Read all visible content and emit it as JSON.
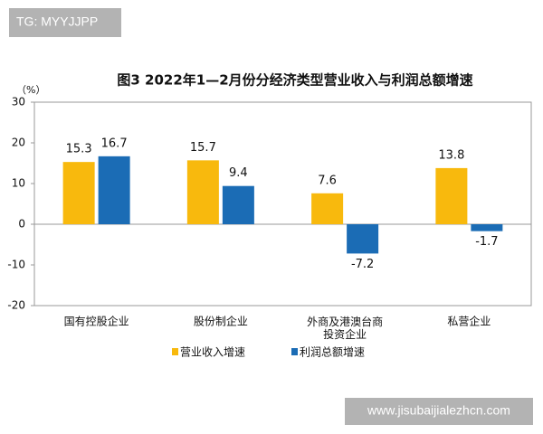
{
  "chart_data": {
    "type": "bar",
    "title": "图3  2022年1—2月份分经济类型营业收入与利润总额增速",
    "y_label": "（%）",
    "categories": [
      "国有控股企业",
      "股份制企业",
      "外商及港澳台商投资企业",
      "私营企业"
    ],
    "series": [
      {
        "name": "营业收入增速",
        "color": "#f8b90d",
        "values": [
          15.3,
          15.7,
          7.6,
          13.8
        ]
      },
      {
        "name": "利润总额增速",
        "color": "#1b6cb5",
        "values": [
          16.7,
          9.4,
          -7.2,
          -1.7
        ]
      }
    ],
    "ylim": [
      -20,
      30
    ],
    "yticks": [
      -20,
      -10,
      0,
      10,
      20,
      30
    ],
    "grid": false,
    "legend": "bottom"
  },
  "overlay": {
    "top_left": "TG: MYYJJPP",
    "bottom_right": "www.jisubaijialezhcn.com"
  }
}
